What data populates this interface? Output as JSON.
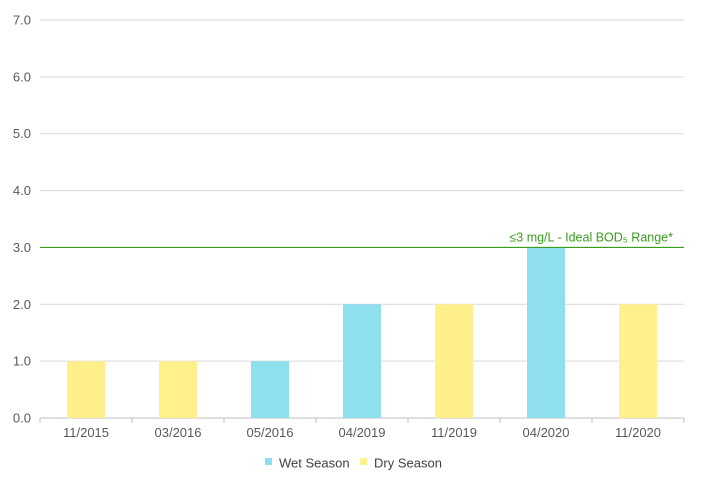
{
  "chart_data": {
    "type": "bar",
    "categories": [
      "11/2015",
      "03/2016",
      "05/2016",
      "04/2019",
      "11/2019",
      "04/2020",
      "11/2020"
    ],
    "values": [
      1.0,
      1.0,
      1.0,
      2.0,
      2.0,
      3.0,
      2.0
    ],
    "point_series": [
      "Dry Season",
      "Dry Season",
      "Wet Season",
      "Wet Season",
      "Dry Season",
      "Wet Season",
      "Dry Season"
    ],
    "series": [
      {
        "name": "Wet Season",
        "color": "#8ee0ee"
      },
      {
        "name": "Dry Season",
        "color": "#fff08c"
      }
    ],
    "ylim": [
      0,
      7
    ],
    "yticks": [
      "0.0",
      "1.0",
      "2.0",
      "3.0",
      "4.0",
      "5.0",
      "6.0",
      "7.0"
    ],
    "grid": true,
    "legend_position": "bottom",
    "reference_line": {
      "value": 3.0,
      "label": "≤3 mg/L - Ideal BOD₅ Range*",
      "color": "#3a9c1e"
    }
  }
}
